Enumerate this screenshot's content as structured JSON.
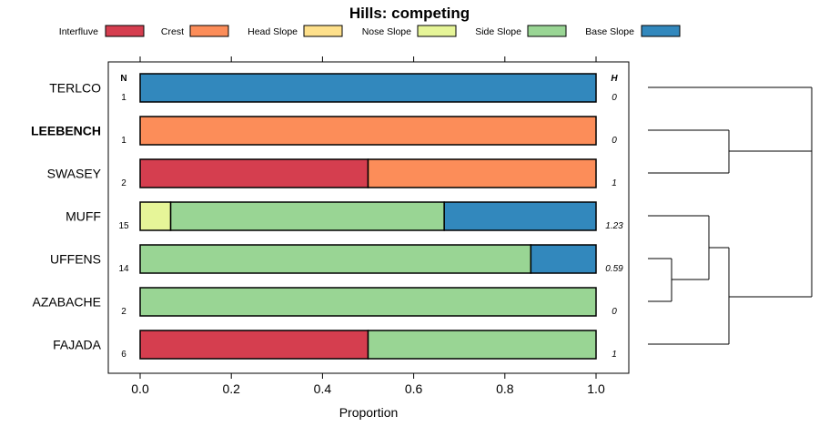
{
  "chart_data": {
    "type": "bar",
    "orientation": "horizontal-stacked",
    "title": "Hills: competing",
    "xlabel": "Proportion",
    "ylabel": "",
    "xlim": [
      0,
      1
    ],
    "xticks": [
      "0.0",
      "0.2",
      "0.4",
      "0.6",
      "0.8",
      "1.0"
    ],
    "xtick_values": [
      0,
      0.2,
      0.4,
      0.6,
      0.8,
      1.0
    ],
    "n_header": "N",
    "h_header": "H",
    "legend": [
      {
        "name": "Interfluve",
        "color": "#d53e4f"
      },
      {
        "name": "Crest",
        "color": "#fc8d59"
      },
      {
        "name": "Head Slope",
        "color": "#fee08b"
      },
      {
        "name": "Nose Slope",
        "color": "#e6f598"
      },
      {
        "name": "Side Slope",
        "color": "#99d594"
      },
      {
        "name": "Base Slope",
        "color": "#3288bd"
      }
    ],
    "categories": [
      "TERLCO",
      "LEEBENCH",
      "SWASEY",
      "MUFF",
      "UFFENS",
      "AZABACHE",
      "FAJADA"
    ],
    "highlight": "LEEBENCH",
    "rows": [
      {
        "name": "TERLCO",
        "n": "1",
        "h": "0",
        "values": [
          0,
          0,
          0,
          0,
          0,
          1.0
        ]
      },
      {
        "name": "LEEBENCH",
        "n": "1",
        "h": "0",
        "values": [
          0,
          1.0,
          0,
          0,
          0,
          0
        ]
      },
      {
        "name": "SWASEY",
        "n": "2",
        "h": "1",
        "values": [
          0.5,
          0.5,
          0,
          0,
          0,
          0
        ]
      },
      {
        "name": "MUFF",
        "n": "15",
        "h": "1.23",
        "values": [
          0,
          0,
          0,
          0.067,
          0.6,
          0.333
        ]
      },
      {
        "name": "UFFENS",
        "n": "14",
        "h": "0.59",
        "values": [
          0,
          0,
          0,
          0,
          0.857,
          0.143
        ]
      },
      {
        "name": "AZABACHE",
        "n": "2",
        "h": "0",
        "values": [
          0,
          0,
          0,
          0,
          1.0,
          0
        ]
      },
      {
        "name": "FAJADA",
        "n": "6",
        "h": "1",
        "values": [
          0.5,
          0,
          0,
          0,
          0.5,
          0
        ]
      }
    ],
    "dendrogram": {
      "description": "hierarchical clustering of series",
      "merges": [
        {
          "a": "LEEBENCH",
          "b": "SWASEY",
          "height": 0.8
        },
        {
          "a": "UFFENS",
          "b": "AZABACHE",
          "height": 0.22
        },
        {
          "a": "MUFF",
          "b": "UFFENS+AZABACHE",
          "height": 0.55
        },
        {
          "a": "MUFF+UFFENS+AZABACHE",
          "b": "FAJADA",
          "height": 0.75
        },
        {
          "a": "TERLCO",
          "b": "LEEBENCH+SWASEY",
          "height": 1.45
        },
        {
          "a": "TERLCO+LEEBENCH+SWASEY",
          "b": "MUFF+UFFENS+AZABACHE+FAJADA",
          "height": 1.45
        }
      ]
    }
  }
}
